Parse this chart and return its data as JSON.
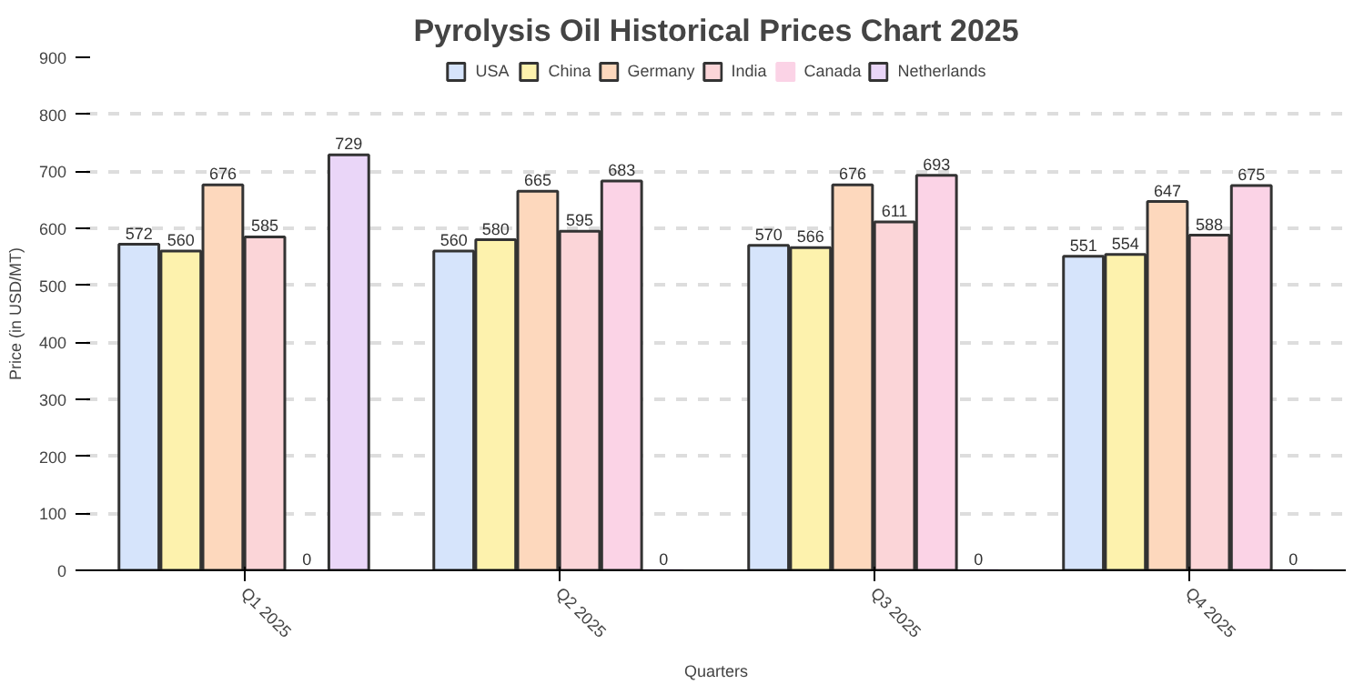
{
  "chart_data": {
    "type": "bar",
    "title": "Pyrolysis Oil Historical Prices Chart 2025",
    "xlabel": "Quarters",
    "ylabel": "Price (in USD/MT)",
    "categories": [
      "Q1 2025",
      "Q2 2025",
      "Q3 2025",
      "Q4 2025"
    ],
    "series": [
      {
        "name": "USA",
        "color": "#d6e4fb",
        "values": [
          572,
          560,
          570,
          551
        ]
      },
      {
        "name": "China",
        "color": "#fdf2ad",
        "values": [
          560,
          580,
          566,
          554
        ]
      },
      {
        "name": "Germany",
        "color": "#fdd8bd",
        "values": [
          676,
          665,
          676,
          647
        ]
      },
      {
        "name": "India",
        "color": "#fbd5d8",
        "values": [
          585,
          595,
          611,
          588
        ]
      },
      {
        "name": "Canada",
        "color": "#fbd3e6",
        "values": [
          0,
          683,
          693,
          675
        ]
      },
      {
        "name": "Netherlands",
        "color": "#ead6f8",
        "values": [
          729,
          0,
          0,
          0
        ]
      }
    ],
    "ylim": [
      0,
      900
    ],
    "yticks": [
      0,
      100,
      200,
      300,
      400,
      500,
      600,
      700,
      800,
      900
    ],
    "grid": "y",
    "legend": "top",
    "data_labels": true
  }
}
